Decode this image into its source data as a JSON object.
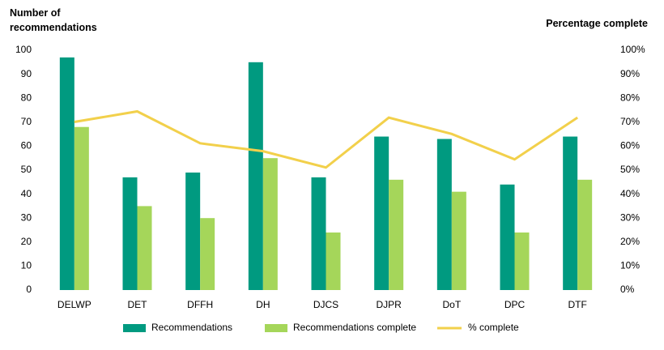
{
  "chart_data": {
    "type": "bar-line",
    "y_axis_label": "Number of recommendations",
    "y2_axis_label": "Percentage complete",
    "categories": [
      "DELWP",
      "DET",
      "DFFH",
      "DH",
      "DJCS",
      "DJPR",
      "DoT",
      "DPC",
      "DTF"
    ],
    "series": [
      {
        "name": "Recommendations",
        "type": "bar",
        "color": "#009a80",
        "values": [
          97,
          47,
          49,
          95,
          47,
          64,
          63,
          44,
          64
        ]
      },
      {
        "name": "Recommendations complete",
        "type": "bar",
        "color": "#a5d65a",
        "values": [
          68,
          35,
          30,
          55,
          24,
          46,
          41,
          24,
          46
        ]
      },
      {
        "name": "% complete",
        "type": "line",
        "axis": "y2",
        "color": "#f2d04b",
        "values": [
          70.1,
          74.5,
          61.2,
          57.9,
          51.1,
          71.9,
          65.1,
          54.5,
          71.9
        ]
      }
    ],
    "ylim": [
      0,
      100
    ],
    "yticks": [
      0,
      10,
      20,
      30,
      40,
      50,
      60,
      70,
      80,
      90,
      100
    ],
    "y2lim": [
      0,
      100
    ],
    "y2ticks": [
      {
        "value": 0,
        "label": "0%"
      },
      {
        "value": 10,
        "label": "10%"
      },
      {
        "value": 20,
        "label": "20%"
      },
      {
        "value": 30,
        "label": "30%"
      },
      {
        "value": 40,
        "label": "40%"
      },
      {
        "value": 50,
        "label": "50%"
      },
      {
        "value": 60,
        "label": "60%"
      },
      {
        "value": 70,
        "label": "70%"
      },
      {
        "value": 80,
        "label": "80%"
      },
      {
        "value": 90,
        "label": "90%"
      },
      {
        "value": 100,
        "label": "100%"
      }
    ],
    "grid": false,
    "legend": "bottom"
  }
}
